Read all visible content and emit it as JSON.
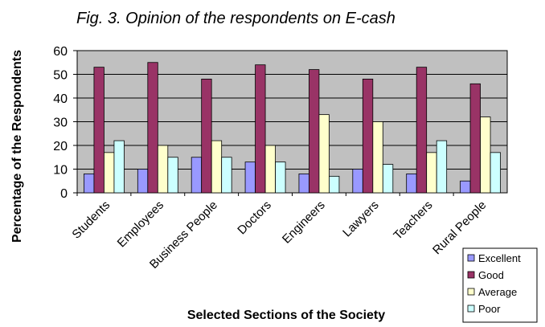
{
  "chart_data": {
    "type": "bar",
    "title": "Fig. 3. Opinion of the respondents on E-cash",
    "xlabel": "Selected Sections of the Society",
    "ylabel": "Percentage of the Respondents",
    "ylim": [
      0,
      60
    ],
    "yticks": [
      0,
      10,
      20,
      30,
      40,
      50,
      60
    ],
    "grid": true,
    "legend_position": "bottom-right",
    "categories": [
      "Students",
      "Employees",
      "Business People",
      "Doctors",
      "Engineers",
      "Lawyers",
      "Teachers",
      "Rural People"
    ],
    "series": [
      {
        "name": "Excellent",
        "color": "#9999ff",
        "values": [
          8,
          10,
          15,
          13,
          8,
          10,
          8,
          5
        ]
      },
      {
        "name": "Good",
        "color": "#993366",
        "values": [
          53,
          55,
          48,
          54,
          52,
          48,
          53,
          46
        ]
      },
      {
        "name": "Average",
        "color": "#ffffcc",
        "values": [
          17,
          20,
          22,
          20,
          33,
          30,
          17,
          32
        ]
      },
      {
        "name": "Poor",
        "color": "#ccffff",
        "values": [
          22,
          15,
          15,
          13,
          7,
          12,
          22,
          17
        ]
      }
    ],
    "plot_background": "#c0c0c0"
  }
}
